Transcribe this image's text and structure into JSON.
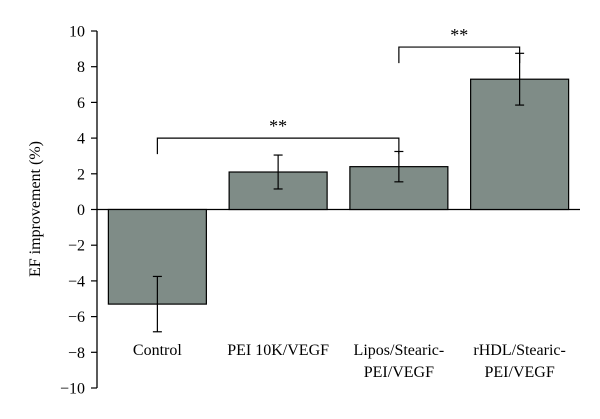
{
  "chart_data": {
    "type": "bar",
    "title": "",
    "xlabel": "",
    "ylabel": "EF improvement (%)",
    "ylim": [
      -10,
      10
    ],
    "yticks": [
      10,
      8,
      6,
      4,
      2,
      0,
      -2,
      -4,
      -6,
      -8,
      -10
    ],
    "ytick_labels": [
      "10",
      "8",
      "6",
      "4",
      "2",
      "0",
      "−2",
      "−4",
      "−6",
      "−8",
      "−10"
    ],
    "categories": [
      [
        "Control"
      ],
      [
        "PEI 10K/VEGF"
      ],
      [
        "Lipos/Stearic-",
        "PEI/VEGF"
      ],
      [
        "rHDL/Stearic-",
        "PEI/VEGF"
      ]
    ],
    "values": [
      -5.3,
      2.1,
      2.4,
      7.3
    ],
    "errors": [
      1.55,
      0.95,
      0.85,
      1.45
    ],
    "bar_color": "#7f8c87",
    "grid": false,
    "legend": "none",
    "annotations": [
      {
        "from": 0,
        "to": 2,
        "text": "**",
        "level": 4.0
      },
      {
        "from": 2,
        "to": 3,
        "text": "**",
        "level": 9.1
      }
    ]
  }
}
